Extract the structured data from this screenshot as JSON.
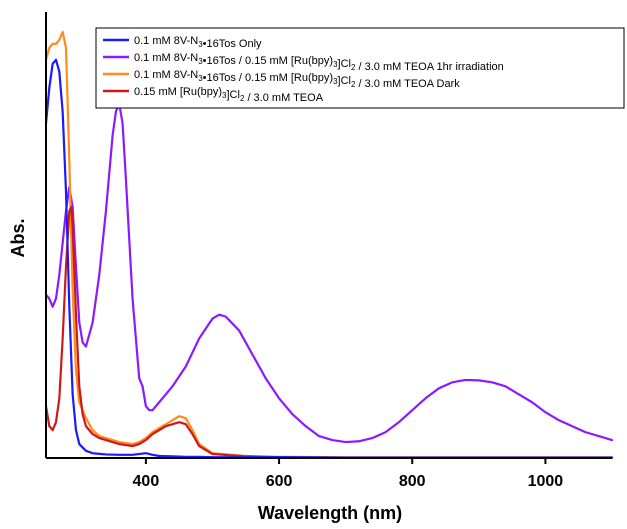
{
  "chart_data": {
    "type": "line",
    "xlabel": "Wavelength (nm)",
    "ylabel": "Abs.",
    "xlim": [
      250,
      1100
    ],
    "ylim": [
      0,
      1.12
    ],
    "xticks": [
      400,
      600,
      800,
      1000
    ],
    "tick_labels": [
      "400",
      "600",
      "800",
      "1000"
    ],
    "y_ticks_shown": false,
    "grid": false,
    "legend_placement": "top-right",
    "series": [
      {
        "name": "0.1 mM 8V-N3•16Tos Only",
        "color": "#1a1aff",
        "x": [
          250,
          255,
          260,
          265,
          270,
          275,
          280,
          285,
          290,
          295,
          300,
          310,
          320,
          340,
          360,
          380,
          400,
          410,
          420,
          440,
          460,
          480,
          500,
          550,
          600,
          700,
          800,
          900,
          1000,
          1100
        ],
        "y": [
          0.84,
          0.93,
          0.99,
          1.0,
          0.97,
          0.87,
          0.67,
          0.38,
          0.16,
          0.07,
          0.035,
          0.018,
          0.012,
          0.009,
          0.008,
          0.008,
          0.012,
          0.008,
          0.005,
          0.004,
          0.003,
          0.003,
          0.002,
          0.002,
          0.002,
          0.001,
          0.001,
          0.001,
          0.001,
          0.001
        ]
      },
      {
        "name": "0.1 mM 8V-N3•16Tos / 0.15 mM [Ru(bpy)3]Cl2 / 3.0 mM TEOA 1hr irradiation",
        "color": "#8a1aff",
        "x": [
          250,
          255,
          260,
          265,
          270,
          275,
          280,
          285,
          290,
          295,
          300,
          305,
          310,
          320,
          330,
          340,
          350,
          355,
          360,
          365,
          370,
          380,
          390,
          395,
          400,
          405,
          410,
          420,
          440,
          460,
          480,
          500,
          510,
          520,
          540,
          560,
          580,
          600,
          620,
          640,
          660,
          680,
          700,
          720,
          740,
          760,
          780,
          800,
          820,
          840,
          860,
          880,
          900,
          920,
          940,
          960,
          980,
          1000,
          1020,
          1040,
          1060,
          1080,
          1100
        ],
        "y": [
          0.41,
          0.4,
          0.38,
          0.4,
          0.46,
          0.54,
          0.62,
          0.68,
          0.63,
          0.48,
          0.34,
          0.29,
          0.28,
          0.34,
          0.46,
          0.62,
          0.81,
          0.87,
          0.89,
          0.84,
          0.7,
          0.4,
          0.2,
          0.18,
          0.13,
          0.12,
          0.12,
          0.14,
          0.18,
          0.23,
          0.3,
          0.35,
          0.36,
          0.355,
          0.32,
          0.26,
          0.2,
          0.15,
          0.11,
          0.08,
          0.055,
          0.045,
          0.04,
          0.042,
          0.05,
          0.065,
          0.09,
          0.12,
          0.15,
          0.175,
          0.19,
          0.196,
          0.195,
          0.19,
          0.18,
          0.16,
          0.14,
          0.115,
          0.095,
          0.08,
          0.065,
          0.055,
          0.045
        ]
      },
      {
        "name": "0.1 mM 8V-N3•16Tos / 0.15 mM [Ru(bpy)3]Cl2 / 3.0 mM TEOA Dark",
        "color": "#ff8c1a",
        "x": [
          250,
          255,
          260,
          265,
          270,
          275,
          280,
          285,
          290,
          295,
          300,
          305,
          310,
          320,
          330,
          340,
          360,
          380,
          390,
          400,
          410,
          420,
          430,
          440,
          450,
          460,
          470,
          480,
          500,
          550,
          600,
          700,
          800,
          900,
          1000,
          1100
        ],
        "y": [
          1.0,
          1.03,
          1.04,
          1.04,
          1.05,
          1.07,
          1.03,
          0.75,
          0.42,
          0.22,
          0.14,
          0.12,
          0.1,
          0.07,
          0.055,
          0.05,
          0.04,
          0.035,
          0.04,
          0.05,
          0.065,
          0.075,
          0.085,
          0.095,
          0.105,
          0.1,
          0.07,
          0.035,
          0.012,
          0.005,
          0.003,
          0.002,
          0.002,
          0.002,
          0.002,
          0.002
        ]
      },
      {
        "name": "0.15 mM [Ru(bpy)3]Cl2 / 3.0 mM TEOA",
        "color": "#cc1a1a",
        "x": [
          250,
          255,
          260,
          265,
          270,
          275,
          280,
          285,
          288,
          290,
          295,
          300,
          305,
          310,
          320,
          330,
          340,
          360,
          380,
          390,
          400,
          410,
          420,
          430,
          440,
          450,
          460,
          470,
          480,
          500,
          550,
          600,
          700,
          800,
          900,
          1000,
          1100
        ],
        "y": [
          0.13,
          0.08,
          0.07,
          0.09,
          0.15,
          0.3,
          0.48,
          0.62,
          0.63,
          0.58,
          0.36,
          0.18,
          0.11,
          0.08,
          0.06,
          0.05,
          0.045,
          0.035,
          0.03,
          0.035,
          0.045,
          0.06,
          0.07,
          0.08,
          0.085,
          0.09,
          0.085,
          0.06,
          0.03,
          0.01,
          0.004,
          0.002,
          0.001,
          0.001,
          0.001,
          0.001,
          0.001
        ]
      }
    ]
  }
}
